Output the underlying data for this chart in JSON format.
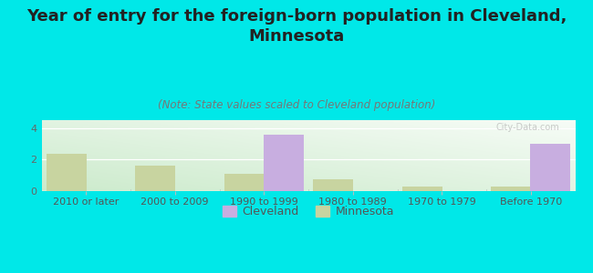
{
  "title": "Year of entry for the foreign-born population in Cleveland,\nMinnesota",
  "subtitle": "(Note: State values scaled to Cleveland population)",
  "categories": [
    "2010 or later",
    "2000 to 2009",
    "1990 to 1999",
    "1980 to 1989",
    "1970 to 1979",
    "Before 1970"
  ],
  "cleveland_values": [
    0,
    0,
    3.55,
    0,
    0,
    3.0
  ],
  "minnesota_values": [
    2.35,
    1.6,
    1.1,
    0.75,
    0.28,
    0.28
  ],
  "cleveland_color": "#c8aee0",
  "minnesota_color": "#c8d4a0",
  "background_color": "#00e8e8",
  "ylim": [
    0,
    4.5
  ],
  "yticks": [
    0,
    2,
    4
  ],
  "bar_width": 0.45,
  "legend_cleveland": "Cleveland",
  "legend_minnesota": "Minnesota",
  "title_fontsize": 13,
  "subtitle_fontsize": 8.5,
  "tick_fontsize": 8,
  "legend_fontsize": 9,
  "watermark": "City-Data.com"
}
